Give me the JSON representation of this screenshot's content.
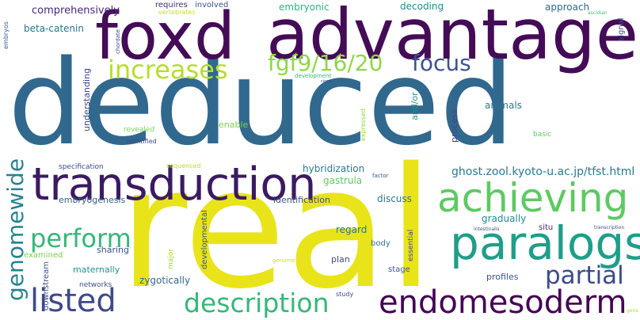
{
  "words": {
    "deduced": "deduced",
    "real": "real",
    "foxd": "foxd",
    "advantage": "advantage",
    "transduction": "transduction",
    "achieving": "achieving",
    "paralogs": "paralogs",
    "endomesoderm": "endomesoderm",
    "listed": "listed",
    "description": "description",
    "partial": "partial",
    "genomewide": "genomewide",
    "perform": "perform",
    "increases": "increases",
    "fgf": "fgf9/16/20",
    "focus": "focus",
    "url": "ghost.zool.kyoto-u.ac.jp/tfst.html",
    "comprehensively": "comprehensively",
    "requires": "requires",
    "involved": "involved",
    "vertebrates": "vertebrates",
    "embryonic": "embryonic",
    "decoding": "decoding",
    "approach": "approach",
    "signal": "signal",
    "beta_catenin": "beta-catenin",
    "embryos": "embryos",
    "understanding": "understanding",
    "chordate": "chordate",
    "development": "development",
    "ciona": "ciona",
    "expressed": "expressed",
    "and_or": "and/or",
    "process": "process",
    "animals": "animals",
    "basic": "basic",
    "revealed": "revealed",
    "identified": "identified",
    "enable": "enable",
    "specification": "specification",
    "sequenced": "sequenced",
    "hybridization": "hybridization",
    "factor": "factor",
    "gastrula": "gastrula",
    "embryogenesis": "embryogenesis",
    "identification": "identification",
    "discuss": "discuss",
    "gradually": "gradually",
    "situ": "situ",
    "regard": "regard",
    "essential": "essential",
    "intestinalis": "intestinalis",
    "transcription": "transcription",
    "examined": "examined",
    "sharing": "sharing",
    "major": "major",
    "developmental": "developmental",
    "body": "body",
    "genome": "genome",
    "plan": "plan",
    "maternally": "maternally",
    "stage": "stage",
    "networks": "networks",
    "zygotically": "zygotically",
    "profiles": "profiles",
    "downstream": "downstream",
    "study": "study",
    "gene": "gene",
    "ascidian": "ascidian"
  }
}
